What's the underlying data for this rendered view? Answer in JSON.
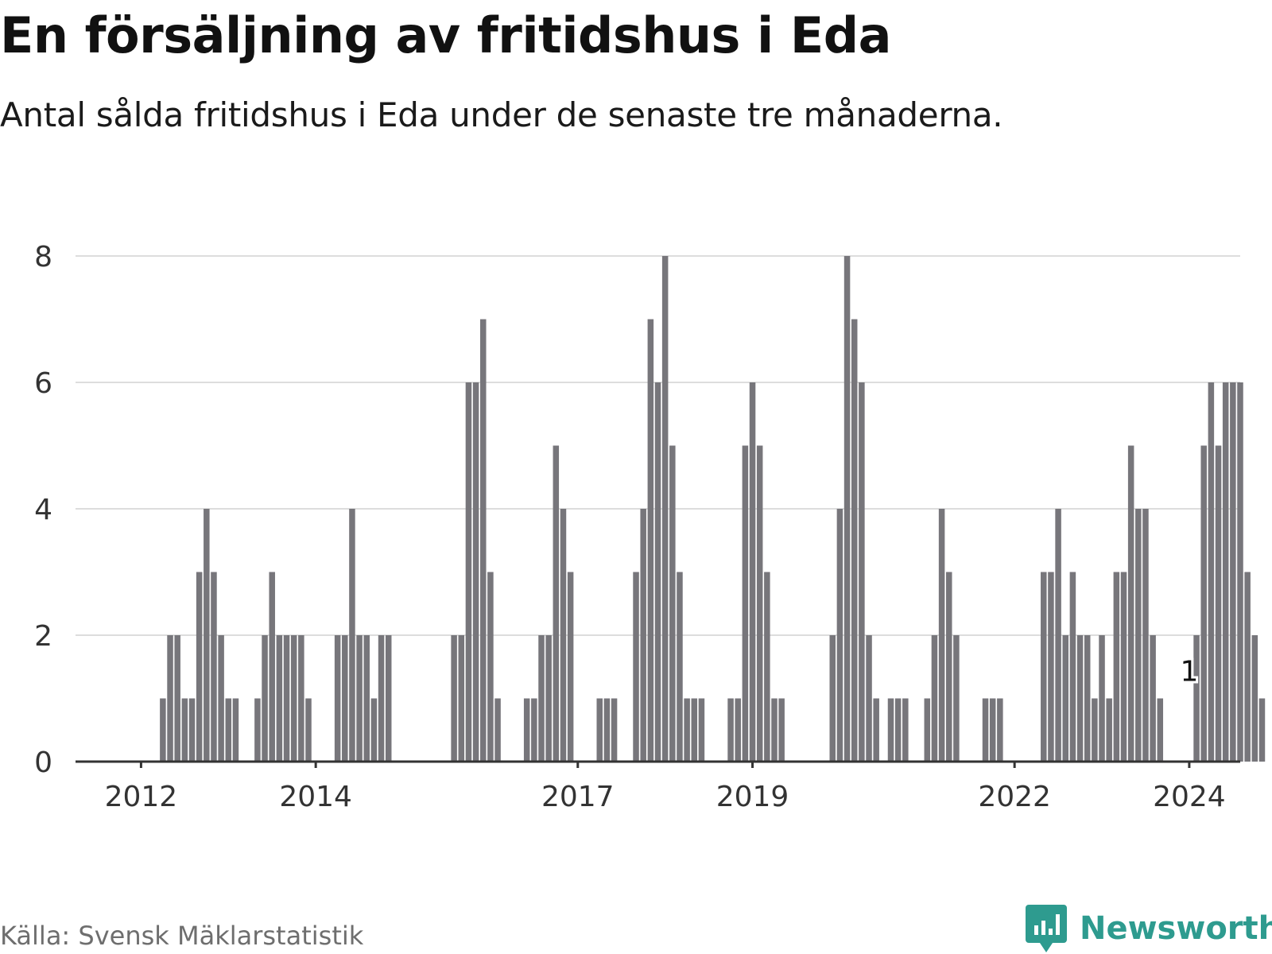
{
  "title": "En försäljning av fritidshus i Eda",
  "subtitle": "Antal sålda fritidshus i Eda under de senaste tre månaderna.",
  "source": "Källa: Svensk Mäklarstatistik",
  "brand": {
    "name": "Newsworthy",
    "icon": "newsworthy-logo-icon",
    "color": "#2e9b8f"
  },
  "colors": {
    "bar": "#77767b",
    "highlight": "#1aa89a",
    "grid": "#dddddd",
    "axis": "#333333"
  },
  "chart_data": {
    "type": "bar",
    "title": "En försäljning av fritidshus i Eda",
    "xlabel": "",
    "ylabel": "",
    "ylim": [
      0,
      8
    ],
    "yticks": [
      0,
      2,
      4,
      6,
      8
    ],
    "grid": true,
    "x_range": [
      "2011-04",
      "2024-08"
    ],
    "xticks": [
      {
        "label": "2012",
        "month": "2012-01"
      },
      {
        "label": "2014",
        "month": "2014-01"
      },
      {
        "label": "2017",
        "month": "2017-01"
      },
      {
        "label": "2019",
        "month": "2019-01"
      },
      {
        "label": "2022",
        "month": "2022-01"
      },
      {
        "label": "2024",
        "month": "2024-01"
      }
    ],
    "start_month": "2012-04",
    "values": [
      1,
      2,
      2,
      1,
      1,
      3,
      4,
      3,
      2,
      1,
      1,
      null,
      null,
      1,
      2,
      3,
      2,
      2,
      2,
      2,
      1,
      null,
      null,
      null,
      2,
      2,
      4,
      2,
      2,
      1,
      2,
      2,
      null,
      null,
      null,
      null,
      null,
      null,
      null,
      null,
      2,
      2,
      6,
      6,
      7,
      3,
      1,
      null,
      null,
      null,
      1,
      1,
      2,
      2,
      5,
      4,
      3,
      null,
      null,
      null,
      1,
      1,
      1,
      null,
      null,
      3,
      4,
      7,
      6,
      8,
      5,
      3,
      1,
      1,
      1,
      null,
      null,
      null,
      1,
      1,
      5,
      6,
      5,
      3,
      1,
      1,
      null,
      null,
      null,
      null,
      null,
      null,
      2,
      4,
      8,
      7,
      6,
      2,
      1,
      null,
      1,
      1,
      1,
      null,
      null,
      1,
      2,
      4,
      3,
      2,
      null,
      null,
      null,
      1,
      1,
      1,
      null,
      null,
      null,
      null,
      null,
      3,
      3,
      4,
      2,
      3,
      2,
      2,
      1,
      2,
      1,
      3,
      3,
      5,
      4,
      4,
      2,
      1,
      null,
      null,
      null,
      null,
      2,
      5,
      6,
      5,
      6,
      6,
      6,
      3,
      2,
      1
    ],
    "highlight": {
      "month": "2024-01",
      "value": 1,
      "label": "1"
    }
  }
}
